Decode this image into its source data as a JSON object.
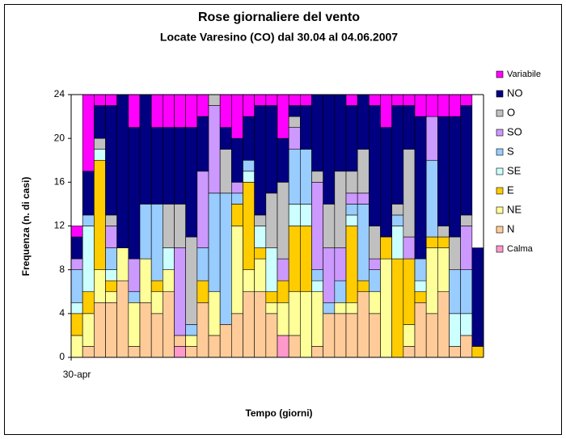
{
  "chart_data": {
    "type": "stacked_bar",
    "title": "Rose giornaliere del vento",
    "subtitle": "Locate Varesino (CO) dal 30.04 al 04.06.2007",
    "x_label": "Tempo (giorni)",
    "y_label": "Frequenza (n. di casi)",
    "categories": [
      "30-apr",
      null,
      null,
      null,
      null,
      null,
      null,
      null,
      null,
      null,
      null,
      null,
      null,
      null,
      null,
      null,
      null,
      null,
      null,
      null,
      null,
      null,
      null,
      null,
      null,
      null,
      null,
      null,
      null,
      null,
      null,
      null,
      null,
      null,
      null,
      null
    ],
    "ylim": [
      0,
      24
    ],
    "yticks": [
      0,
      4,
      8,
      12,
      16,
      20,
      24
    ],
    "grid": false,
    "legend": "right",
    "series": [
      {
        "name": "Calma",
        "color": "#ff99cc",
        "values": [
          0,
          0,
          0,
          0,
          0,
          0,
          0,
          0,
          0,
          1,
          0,
          0,
          0,
          0,
          0,
          0,
          0,
          0,
          2,
          0,
          0,
          0,
          0,
          0,
          0,
          0,
          0,
          0,
          0,
          0,
          0,
          0,
          0,
          0,
          0,
          0
        ]
      },
      {
        "name": "N",
        "color": "#ffcc99",
        "values": [
          0,
          1,
          5,
          5,
          7,
          1,
          5,
          4,
          6,
          1,
          1,
          5,
          2,
          3,
          4,
          6,
          6,
          4,
          0,
          2,
          0,
          1,
          4,
          4,
          4,
          6,
          4,
          0,
          0,
          1,
          5,
          4,
          6,
          1,
          2,
          0
        ]
      },
      {
        "name": "NE",
        "color": "#ffff99",
        "values": [
          2,
          3,
          3,
          1,
          3,
          4,
          4,
          2,
          2,
          0,
          1,
          0,
          4,
          0,
          8,
          2,
          3,
          1,
          3,
          4,
          6,
          5,
          0,
          1,
          1,
          0,
          2,
          9,
          0,
          2,
          0,
          6,
          4,
          0,
          0,
          0
        ]
      },
      {
        "name": "E",
        "color": "#ffcc00",
        "values": [
          2,
          2,
          10,
          1,
          0,
          0,
          0,
          1,
          0,
          0,
          0,
          2,
          0,
          0,
          2,
          8,
          1,
          1,
          2,
          6,
          6,
          0,
          0,
          0,
          7,
          1,
          0,
          2,
          9,
          6,
          1,
          1,
          1,
          0,
          0,
          1
        ]
      },
      {
        "name": "SE",
        "color": "#ccffff",
        "values": [
          1,
          6,
          1,
          1,
          0,
          0,
          0,
          0,
          2,
          0,
          0,
          0,
          0,
          0,
          0,
          1,
          2,
          4,
          0,
          2,
          2,
          1,
          0,
          0,
          1,
          0,
          0,
          0,
          3,
          0,
          1,
          0,
          0,
          3,
          2,
          0
        ]
      },
      {
        "name": "S",
        "color": "#99ccff",
        "values": [
          3,
          1,
          0,
          2,
          0,
          1,
          5,
          7,
          0,
          0,
          1,
          3,
          9,
          12,
          1,
          1,
          0,
          0,
          0,
          5,
          5,
          1,
          1,
          2,
          1,
          7,
          2,
          0,
          1,
          0,
          2,
          7,
          0,
          4,
          4,
          0
        ]
      },
      {
        "name": "SO",
        "color": "#cc99ff",
        "values": [
          1,
          0,
          0,
          2,
          0,
          3,
          0,
          0,
          0,
          8,
          0,
          7,
          8,
          0,
          1,
          0,
          0,
          0,
          2,
          2,
          0,
          8,
          5,
          3,
          1,
          1,
          1,
          0,
          0,
          2,
          0,
          4,
          0,
          0,
          4,
          0
        ]
      },
      {
        "name": "O",
        "color": "#c0c0c0",
        "values": [
          0,
          0,
          1,
          1,
          0,
          0,
          0,
          0,
          4,
          4,
          8,
          0,
          1,
          4,
          0,
          0,
          1,
          5,
          7,
          1,
          0,
          1,
          4,
          7,
          2,
          4,
          3,
          0,
          1,
          8,
          0,
          0,
          1,
          3,
          1,
          0
        ]
      },
      {
        "name": "NO",
        "color": "#000080",
        "values": [
          2,
          4,
          3,
          10,
          14,
          12,
          10,
          7,
          7,
          7,
          10,
          5,
          0,
          2,
          4,
          4,
          10,
          8,
          4,
          1,
          4,
          7,
          10,
          7,
          6,
          5,
          11,
          10,
          9,
          4,
          13,
          0,
          10,
          11,
          10,
          9
        ]
      },
      {
        "name": "Variabile",
        "color": "#ff00ff",
        "values": [
          1,
          7,
          1,
          1,
          0,
          3,
          0,
          3,
          3,
          3,
          3,
          2,
          0,
          3,
          4,
          2,
          1,
          1,
          4,
          1,
          1,
          0,
          0,
          0,
          1,
          0,
          1,
          3,
          1,
          1,
          2,
          2,
          2,
          2,
          1,
          0
        ]
      }
    ]
  }
}
